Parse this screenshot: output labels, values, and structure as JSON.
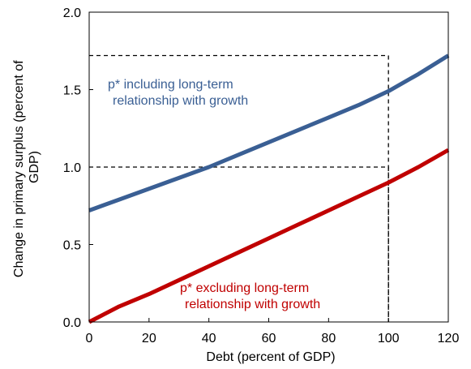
{
  "chart_data": {
    "type": "line",
    "xlabel": "Debt (percent of GDP)",
    "ylabel": "Change in primary surplus (percent of GDP)",
    "xlim": [
      0,
      120
    ],
    "ylim": [
      0.0,
      2.0
    ],
    "xticks": [
      0,
      20,
      40,
      60,
      80,
      100,
      120
    ],
    "xtick_labels": [
      "0",
      "20",
      "40",
      "60",
      "80",
      "100",
      "120"
    ],
    "yticks": [
      0.0,
      0.5,
      1.0,
      1.5,
      2.0
    ],
    "ytick_labels": [
      "0.0",
      "0.5",
      "1.0",
      "1.5",
      "2.0"
    ],
    "grid": false,
    "series": [
      {
        "name": "p* including long-term relationship with growth",
        "color": "#3a5f94",
        "x": [
          0,
          10,
          20,
          30,
          40,
          50,
          60,
          70,
          80,
          90,
          100,
          110,
          120
        ],
        "values": [
          0.72,
          0.79,
          0.86,
          0.93,
          1.0,
          1.08,
          1.16,
          1.24,
          1.32,
          1.4,
          1.49,
          1.6,
          1.72
        ]
      },
      {
        "name": "p* excluding long-term relationship with growth",
        "color": "#c00000",
        "x": [
          0,
          10,
          20,
          30,
          40,
          50,
          60,
          70,
          80,
          90,
          100,
          110,
          120
        ],
        "values": [
          0.0,
          0.1,
          0.18,
          0.27,
          0.36,
          0.45,
          0.54,
          0.63,
          0.72,
          0.81,
          0.9,
          1.0,
          1.11
        ]
      }
    ],
    "reference_lines": [
      {
        "x": 100,
        "y": 1.72
      },
      {
        "x": 100,
        "y": 1.0
      }
    ],
    "annotations": [
      {
        "series": 0,
        "lines": [
          "p* including long-term",
          "relationship with growth"
        ]
      },
      {
        "series": 1,
        "lines": [
          "p* excluding long-term",
          "relationship with growth"
        ]
      }
    ]
  }
}
